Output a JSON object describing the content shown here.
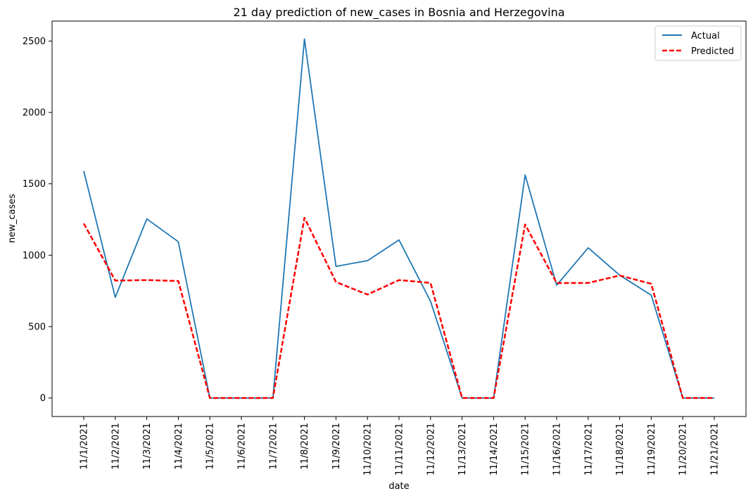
{
  "chart_data": {
    "type": "line",
    "title": "21 day prediction of new_cases in Bosnia and Herzegovina",
    "xlabel": "date",
    "ylabel": "new_cases",
    "categories": [
      "11/1/2021",
      "11/2/2021",
      "11/3/2021",
      "11/4/2021",
      "11/5/2021",
      "11/6/2021",
      "11/7/2021",
      "11/8/2021",
      "11/9/2021",
      "11/10/2021",
      "11/11/2021",
      "11/12/2021",
      "11/13/2021",
      "11/14/2021",
      "11/15/2021",
      "11/16/2021",
      "11/17/2021",
      "11/18/2021",
      "11/19/2021",
      "11/20/2021",
      "11/21/2021"
    ],
    "yticks": [
      0,
      500,
      1000,
      1500,
      2000,
      2500
    ],
    "ylim": [
      -130,
      2640
    ],
    "grid": false,
    "legend_position": "top-right",
    "series": [
      {
        "name": "Actual",
        "color": "#1f77b4",
        "style": "solid",
        "values": [
          1590,
          705,
          1254,
          1094,
          0,
          0,
          0,
          2515,
          922,
          962,
          1107,
          677,
          0,
          0,
          1562,
          790,
          1052,
          860,
          720,
          0,
          0
        ]
      },
      {
        "name": "Predicted",
        "color": "#ff0000",
        "style": "dashed",
        "values": [
          1222,
          822,
          826,
          819,
          0,
          0,
          0,
          1262,
          812,
          724,
          826,
          806,
          0,
          0,
          1215,
          805,
          806,
          858,
          800,
          0,
          0
        ]
      }
    ]
  }
}
